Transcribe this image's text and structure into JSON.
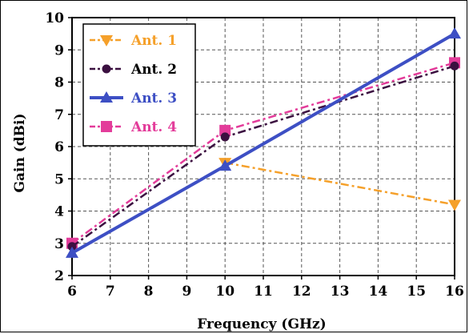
{
  "chart_data": {
    "type": "line",
    "title": "",
    "xlabel": "Frequency (GHz)",
    "ylabel": "Gain (dBi)",
    "xlim": [
      6,
      16
    ],
    "ylim": [
      2,
      10
    ],
    "xticks": [
      "6",
      "7",
      "8",
      "9",
      "10",
      "11",
      "12",
      "13",
      "14",
      "15",
      "16"
    ],
    "yticks": [
      "2",
      "3",
      "4",
      "5",
      "6",
      "7",
      "8",
      "9",
      "10"
    ],
    "grid": true,
    "legend_position": "top-left",
    "series": [
      {
        "name": "Ant. 1",
        "color": "#f5a02a",
        "marker": "triangle-down",
        "line_style": "dash-dot",
        "x": [
          10,
          16
        ],
        "y": [
          5.5,
          4.2
        ]
      },
      {
        "name": "Ant. 2",
        "color": "#3b1040",
        "marker": "circle",
        "line_style": "dash-dot",
        "x": [
          6,
          10,
          16
        ],
        "y": [
          2.9,
          6.3,
          8.5
        ]
      },
      {
        "name": "Ant. 3",
        "color": "#3d4fc4",
        "marker": "triangle-up",
        "line_style": "solid",
        "x": [
          6,
          10,
          16
        ],
        "y": [
          2.7,
          5.4,
          9.5
        ]
      },
      {
        "name": "Ant. 4",
        "color": "#e33c9a",
        "marker": "square",
        "line_style": "dash-dot",
        "x": [
          6,
          10,
          16
        ],
        "y": [
          3.0,
          6.5,
          8.6
        ]
      }
    ]
  }
}
